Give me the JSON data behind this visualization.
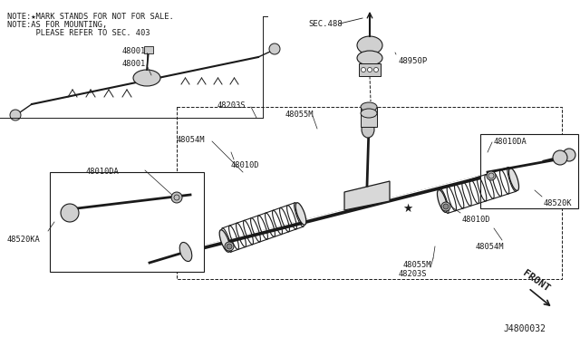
{
  "bg_color": "#ffffff",
  "line_color": "#1a1a1a",
  "text_color": "#1a1a1a",
  "fig_width": 6.4,
  "fig_height": 3.72,
  "dpi": 100,
  "notes_line1": "NOTE:★MARK STANDS FOR NOT FOR SALE.",
  "notes_line2": "NOTE:AS FOR MOUNTING,",
  "notes_line3": "      PLEASE REFER TO SEC. 403",
  "diagram_code_label": "J4800032",
  "front_label": "FRONT"
}
